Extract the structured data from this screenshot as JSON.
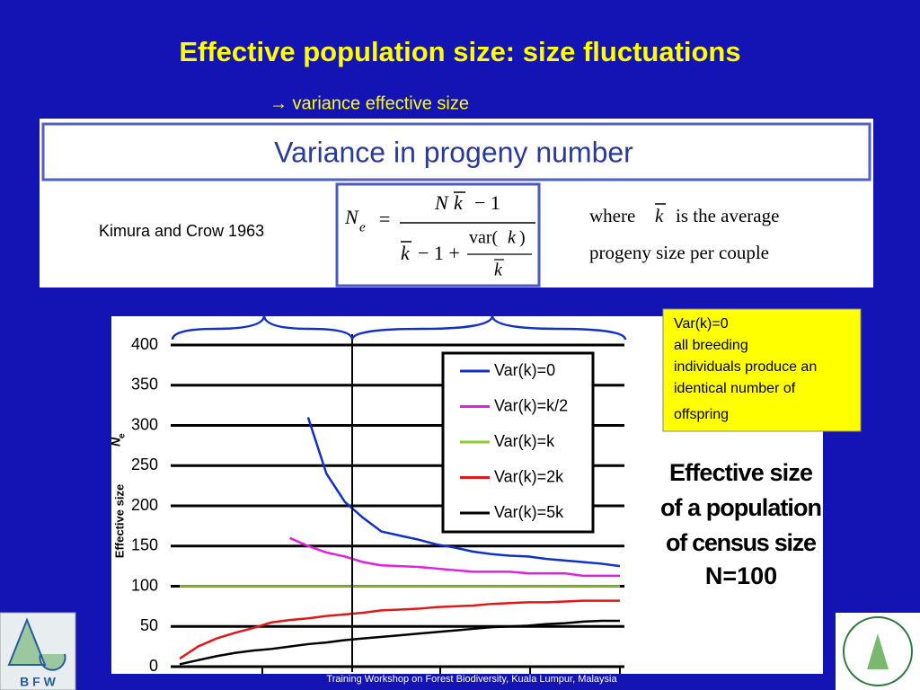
{
  "slide_title": "Effective population size: size fluctuations",
  "subtitle": "→ variance effective size",
  "panel": {
    "heading": "Variance in progeny number",
    "citation": "Kimura and Crow 1963",
    "formula": {
      "lhs": "N",
      "lhs_sub": "e",
      "eq": "=",
      "num": "N",
      "num_k": "k",
      "num_rest": "− 1",
      "den_k": "k",
      "den_rest": "− 1 +",
      "var": "var(",
      "var_k": "k",
      "var_close": ")",
      "var_den": "k"
    },
    "note": {
      "line1_a": "where",
      "line1_k": "k",
      "line1_b": "is the average",
      "line2": "progeny size per couple"
    }
  },
  "note_box": [
    "Var(k)=0",
    "all breeding",
    "individuals produce an",
    "identical number of",
    "offspring"
  ],
  "annotation": [
    "Effective size",
    "of a population",
    "of census size",
    "N=100"
  ],
  "footer": "Training Workshop on Forest Biodiversity, Kuala Lumpur, Malaysia",
  "logo_left": "B F W",
  "chart_data": {
    "type": "line",
    "y_label": "Effective size",
    "y_label_symbol": "N",
    "y_label_sub": "e",
    "categories": [
      null,
      null,
      null,
      null,
      null,
      null,
      null,
      null,
      null,
      null,
      null,
      null,
      null,
      null,
      null,
      null,
      null,
      null,
      null,
      null,
      null,
      null,
      null,
      null,
      null
    ],
    "ylim": [
      0,
      400
    ],
    "yticks": [
      0,
      50,
      100,
      150,
      200,
      250,
      300,
      350,
      400
    ],
    "grid": true,
    "legend": "upper right",
    "series": [
      {
        "name": "Var(k)=0",
        "color": "#1030c8",
        "values": [
          null,
          null,
          null,
          null,
          null,
          null,
          null,
          310,
          240,
          205,
          185,
          168,
          163,
          158,
          152,
          148,
          143,
          140,
          138,
          137,
          134,
          132,
          130,
          128,
          125
        ]
      },
      {
        "name": "Var(k)=k/2",
        "color": "#e020e0",
        "values": [
          null,
          null,
          null,
          null,
          null,
          null,
          160,
          150,
          142,
          137,
          130,
          126,
          125,
          124,
          122,
          120,
          118,
          118,
          118,
          116,
          116,
          116,
          113,
          113,
          113
        ]
      },
      {
        "name": "Var(k)=k",
        "color": "#90c830",
        "values": [
          100,
          100,
          100,
          100,
          100,
          100,
          100,
          100,
          100,
          100,
          100,
          100,
          100,
          100,
          100,
          100,
          100,
          100,
          100,
          100,
          100,
          100,
          100,
          100,
          100
        ]
      },
      {
        "name": "Var(k)=2k",
        "color": "#e01818",
        "values": [
          10,
          25,
          35,
          42,
          48,
          55,
          58,
          60,
          63,
          65,
          67,
          70,
          71,
          72,
          74,
          75,
          76,
          78,
          79,
          80,
          80,
          81,
          82,
          82,
          82
        ]
      },
      {
        "name": "Var(k)=5k",
        "color": "#000000",
        "values": [
          3,
          8,
          13,
          17,
          20,
          22,
          25,
          28,
          30,
          33,
          35,
          37,
          39,
          41,
          43,
          45,
          47,
          49,
          50,
          51,
          53,
          54,
          56,
          57,
          57
        ]
      }
    ]
  }
}
